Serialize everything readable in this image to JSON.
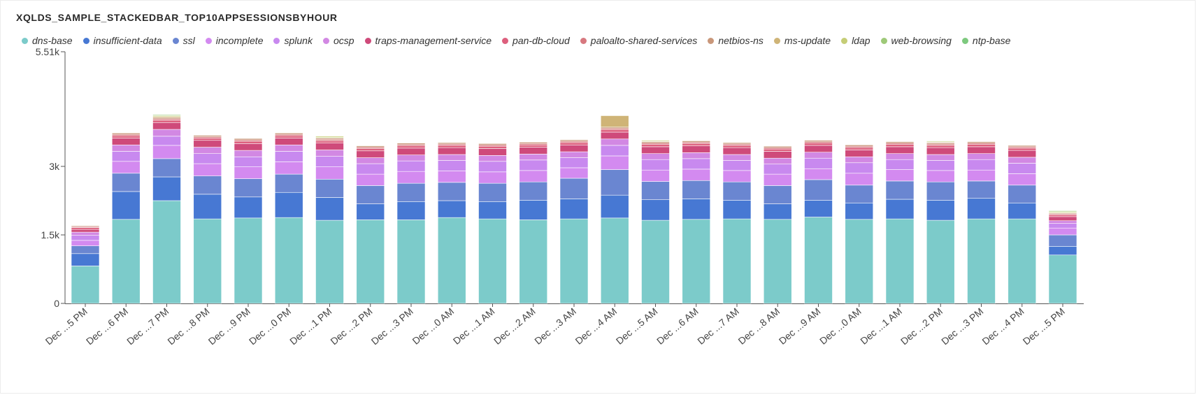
{
  "header": {
    "title": "XQLDS_SAMPLE_STACKEDBAR_TOP10APPSESSIONSBYHOUR"
  },
  "chart_data": {
    "type": "bar",
    "stacked": true,
    "title": "XQLDS_SAMPLE_STACKEDBAR_TOP10APPSESSIONSBYHOUR",
    "xlabel": "",
    "ylabel": "",
    "ylim": [
      0,
      5510
    ],
    "y_ticks": [
      {
        "value": 0,
        "label": "0"
      },
      {
        "value": 1500,
        "label": "1.5k"
      },
      {
        "value": 3000,
        "label": "3k"
      },
      {
        "value": 5510,
        "label": "5.51k"
      }
    ],
    "legend_position": "top",
    "categories": [
      "Dec ...5 PM",
      "Dec ...6 PM",
      "Dec ...7 PM",
      "Dec ...8 PM",
      "Dec ...9 PM",
      "Dec ...0 PM",
      "Dec ...1 PM",
      "Dec ...2 PM",
      "Dec ...3 PM",
      "Dec ...0 AM",
      "Dec ...1 AM",
      "Dec ...2 AM",
      "Dec ...3 AM",
      "Dec ...4 AM",
      "Dec ...5 AM",
      "Dec ...6 AM",
      "Dec ...7 AM",
      "Dec ...8 AM",
      "Dec ...9 AM",
      "Dec ...0 AM",
      "Dec ...1 AM",
      "Dec ...2 PM",
      "Dec ...3 PM",
      "Dec ...4 PM",
      "Dec ...5 PM"
    ],
    "series": [
      {
        "name": "dns-base",
        "color": "#7ccbca",
        "values": [
          820,
          1840,
          2250,
          1850,
          1870,
          1880,
          1820,
          1830,
          1830,
          1880,
          1850,
          1830,
          1850,
          1870,
          1820,
          1840,
          1850,
          1840,
          1890,
          1840,
          1850,
          1820,
          1850,
          1850,
          1060
        ]
      },
      {
        "name": "insufficient-data",
        "color": "#4778d3",
        "values": [
          270,
          610,
          520,
          540,
          460,
          550,
          500,
          350,
          400,
          370,
          380,
          430,
          440,
          500,
          450,
          450,
          410,
          340,
          370,
          360,
          430,
          440,
          450,
          350,
          190
        ]
      },
      {
        "name": "ssl",
        "color": "#6a86d1",
        "values": [
          170,
          400,
          400,
          400,
          400,
          400,
          400,
          400,
          400,
          400,
          400,
          400,
          450,
          560,
          400,
          400,
          400,
          400,
          450,
          390,
          400,
          400,
          380,
          390,
          250
        ]
      },
      {
        "name": "incomplete",
        "color": "#d38af0",
        "values": [
          120,
          260,
          290,
          270,
          260,
          270,
          270,
          250,
          260,
          250,
          250,
          250,
          230,
          300,
          250,
          250,
          250,
          250,
          240,
          260,
          250,
          250,
          240,
          250,
          150
        ]
      },
      {
        "name": "splunk",
        "color": "#c889ef",
        "values": [
          110,
          220,
          200,
          220,
          220,
          230,
          230,
          230,
          230,
          230,
          230,
          230,
          220,
          230,
          230,
          230,
          220,
          220,
          230,
          230,
          220,
          220,
          230,
          230,
          100
        ]
      },
      {
        "name": "ocsp",
        "color": "#d288e3",
        "values": [
          70,
          140,
          150,
          140,
          140,
          140,
          140,
          130,
          130,
          130,
          130,
          130,
          130,
          140,
          130,
          130,
          130,
          130,
          130,
          130,
          130,
          130,
          130,
          130,
          60
        ]
      },
      {
        "name": "traps-management-service",
        "color": "#cf4a7a",
        "values": [
          60,
          150,
          150,
          150,
          150,
          150,
          150,
          150,
          150,
          150,
          150,
          150,
          150,
          150,
          150,
          150,
          150,
          150,
          150,
          150,
          150,
          150,
          150,
          150,
          90
        ]
      },
      {
        "name": "pan-db-cloud",
        "color": "#dd5f7d",
        "values": [
          40,
          50,
          50,
          50,
          50,
          50,
          50,
          50,
          50,
          50,
          50,
          50,
          50,
          50,
          50,
          50,
          50,
          50,
          50,
          50,
          50,
          50,
          50,
          50,
          40
        ]
      },
      {
        "name": "paloalto-shared-services",
        "color": "#d7787f",
        "values": [
          20,
          30,
          30,
          30,
          30,
          30,
          30,
          30,
          30,
          30,
          30,
          30,
          30,
          30,
          30,
          30,
          30,
          30,
          30,
          30,
          30,
          30,
          30,
          30,
          20
        ]
      },
      {
        "name": "netbios-ns",
        "color": "#c9977a",
        "values": [
          20,
          30,
          30,
          30,
          30,
          30,
          30,
          30,
          30,
          30,
          30,
          30,
          30,
          30,
          30,
          30,
          30,
          30,
          30,
          30,
          30,
          30,
          30,
          30,
          20
        ]
      },
      {
        "name": "ms-update",
        "color": "#cfb477",
        "values": [
          10,
          10,
          20,
          10,
          10,
          10,
          10,
          10,
          10,
          10,
          10,
          10,
          10,
          250,
          10,
          10,
          10,
          10,
          10,
          10,
          10,
          10,
          10,
          10,
          10
        ]
      },
      {
        "name": "ldap",
        "color": "#c5cd76",
        "values": [
          0,
          0,
          20,
          0,
          0,
          0,
          30,
          0,
          0,
          0,
          0,
          0,
          0,
          0,
          20,
          0,
          0,
          0,
          0,
          0,
          0,
          20,
          0,
          0,
          20
        ]
      },
      {
        "name": "web-browsing",
        "color": "#9ec978",
        "values": [
          0,
          0,
          20,
          0,
          0,
          0,
          10,
          0,
          0,
          0,
          0,
          0,
          0,
          0,
          10,
          0,
          0,
          0,
          0,
          0,
          0,
          10,
          0,
          0,
          20
        ]
      },
      {
        "name": "ntp-base",
        "color": "#7dc97e",
        "values": [
          0,
          0,
          10,
          0,
          0,
          0,
          0,
          0,
          0,
          0,
          0,
          0,
          0,
          0,
          0,
          0,
          0,
          0,
          0,
          0,
          0,
          0,
          0,
          0,
          10
        ]
      }
    ]
  }
}
